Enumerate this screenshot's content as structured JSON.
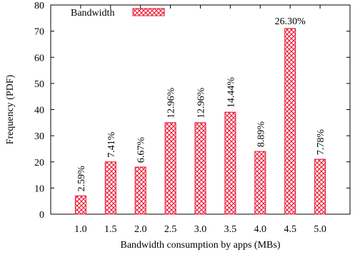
{
  "chart_data": {
    "type": "bar",
    "categories": [
      "1.0",
      "1.5",
      "2.0",
      "2.5",
      "3.0",
      "3.5",
      "4.0",
      "4.5",
      "5.0"
    ],
    "series": [
      {
        "name": "Bandwidth",
        "values": [
          7,
          20,
          18,
          35,
          35,
          39,
          24,
          71,
          21
        ],
        "labels": [
          "2.59%",
          "7.41%",
          "6.67%",
          "12.96%",
          "12.96%",
          "14.44%",
          "8.89%",
          "26.30%",
          "7.78%"
        ]
      }
    ],
    "xlabel": "Bandwidth consumption by apps (MBs)",
    "ylabel": "Frequency (PDF)",
    "ylim": [
      0,
      80
    ],
    "yticks": [
      0,
      10,
      20,
      30,
      40,
      50,
      60,
      70,
      80
    ],
    "legend": "top-left",
    "bar_color": "#e8112d",
    "grid": false
  }
}
